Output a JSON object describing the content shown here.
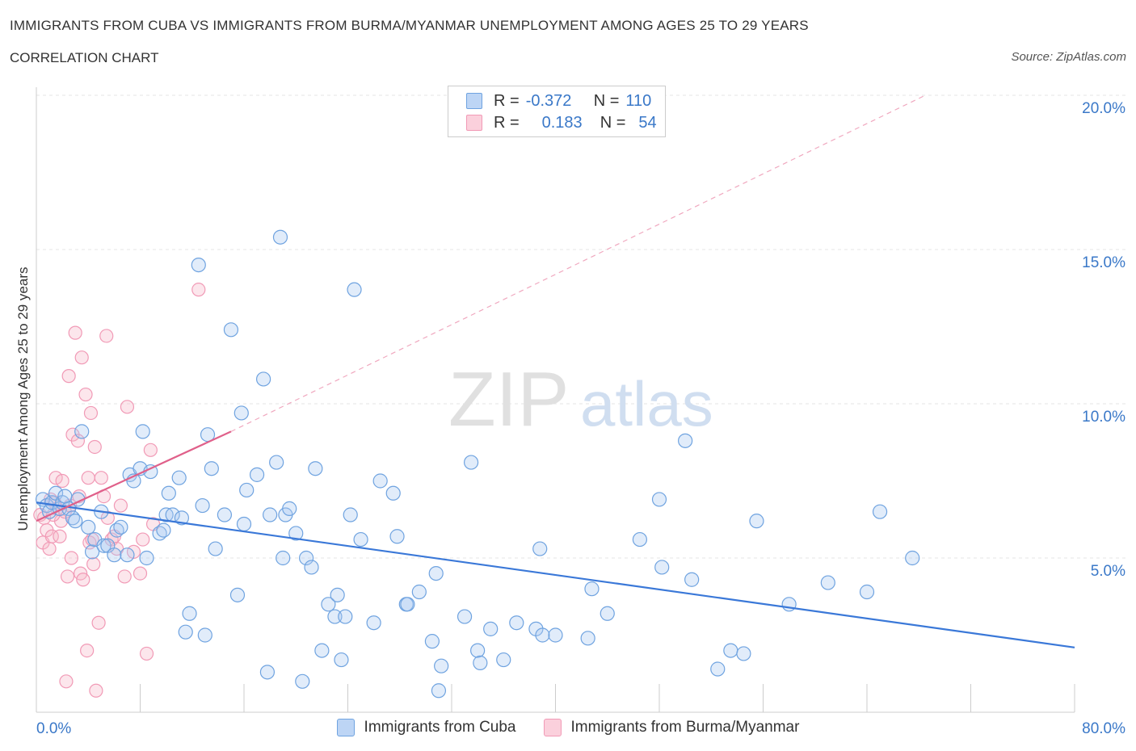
{
  "title": "IMMIGRANTS FROM CUBA VS IMMIGRANTS FROM BURMA/MYANMAR UNEMPLOYMENT AMONG AGES 25 TO 29 YEARS",
  "subtitle": "CORRELATION CHART",
  "source": "Source: ZipAtlas.com",
  "watermark": {
    "zip": "ZIP",
    "atlas": "atlas"
  },
  "legend": {
    "rows": [
      {
        "r_label": "R =",
        "r_value": "-0.372",
        "n_label": "N =",
        "n_value": "110",
        "color": "#a8c8f0"
      },
      {
        "r_label": "R =",
        "r_value": "0.183",
        "n_label": "N =",
        "n_value": "54",
        "color": "#f7b6c8"
      }
    ]
  },
  "bottom_legend": [
    "Immigrants from Cuba",
    "Immigrants from Burma/Myanmar"
  ],
  "chart_data": {
    "type": "scatter",
    "title": "IMMIGRANTS FROM CUBA VS IMMIGRANTS FROM BURMA/MYANMAR UNEMPLOYMENT AMONG AGES 25 TO 29 YEARS",
    "xlabel": "",
    "ylabel": "Unemployment Among Ages 25 to 29 years",
    "xlim": [
      0,
      80
    ],
    "ylim": [
      0,
      20
    ],
    "x_tick_labels": [
      "0.0%",
      "80.0%"
    ],
    "y_ticks": [
      5,
      10,
      15,
      20
    ],
    "y_tick_labels": [
      "5.0%",
      "10.0%",
      "15.0%",
      "20.0%"
    ],
    "grid": true,
    "series": [
      {
        "name": "Immigrants from Cuba",
        "color": "#6fa3e0",
        "trend": {
          "x": [
            0,
            80
          ],
          "y": [
            6.8,
            2.1
          ],
          "color": "#3a78d8"
        },
        "points": [
          [
            0.5,
            6.9
          ],
          [
            0.8,
            6.7
          ],
          [
            1.0,
            6.5
          ],
          [
            1.2,
            6.8
          ],
          [
            1.5,
            7.1
          ],
          [
            1.8,
            6.6
          ],
          [
            2.0,
            6.8
          ],
          [
            2.2,
            7.0
          ],
          [
            2.5,
            6.6
          ],
          [
            2.8,
            6.3
          ],
          [
            3.0,
            6.2
          ],
          [
            3.2,
            6.9
          ],
          [
            3.5,
            9.1
          ],
          [
            4.0,
            6.0
          ],
          [
            4.3,
            5.2
          ],
          [
            4.5,
            5.6
          ],
          [
            5.0,
            6.5
          ],
          [
            5.2,
            5.4
          ],
          [
            5.5,
            5.4
          ],
          [
            6.0,
            5.1
          ],
          [
            6.2,
            5.9
          ],
          [
            6.5,
            6.0
          ],
          [
            7.0,
            5.1
          ],
          [
            7.2,
            7.7
          ],
          [
            7.5,
            7.5
          ],
          [
            8.0,
            7.9
          ],
          [
            8.2,
            9.1
          ],
          [
            8.5,
            5.0
          ],
          [
            8.8,
            7.8
          ],
          [
            9.5,
            5.8
          ],
          [
            9.8,
            5.9
          ],
          [
            10.0,
            6.4
          ],
          [
            10.2,
            7.1
          ],
          [
            10.5,
            6.4
          ],
          [
            11.0,
            7.6
          ],
          [
            11.2,
            6.3
          ],
          [
            11.5,
            2.6
          ],
          [
            11.8,
            3.2
          ],
          [
            12.5,
            14.5
          ],
          [
            12.8,
            6.7
          ],
          [
            13.0,
            2.5
          ],
          [
            13.2,
            9.0
          ],
          [
            13.5,
            7.9
          ],
          [
            13.8,
            5.3
          ],
          [
            14.5,
            6.4
          ],
          [
            15.0,
            12.4
          ],
          [
            15.5,
            3.8
          ],
          [
            15.8,
            9.7
          ],
          [
            16.0,
            6.1
          ],
          [
            16.2,
            7.2
          ],
          [
            17.0,
            7.7
          ],
          [
            17.5,
            10.8
          ],
          [
            17.8,
            1.3
          ],
          [
            18.0,
            6.4
          ],
          [
            18.5,
            8.1
          ],
          [
            18.8,
            15.4
          ],
          [
            19.0,
            5.0
          ],
          [
            19.2,
            6.4
          ],
          [
            19.5,
            6.6
          ],
          [
            20.0,
            5.8
          ],
          [
            20.5,
            1.0
          ],
          [
            20.8,
            5.0
          ],
          [
            21.2,
            4.7
          ],
          [
            21.5,
            7.9
          ],
          [
            22.0,
            2.0
          ],
          [
            22.5,
            3.5
          ],
          [
            23.0,
            3.1
          ],
          [
            23.2,
            3.8
          ],
          [
            23.5,
            1.7
          ],
          [
            23.8,
            3.1
          ],
          [
            24.2,
            6.4
          ],
          [
            24.5,
            13.7
          ],
          [
            25.0,
            5.6
          ],
          [
            26.0,
            2.9
          ],
          [
            26.5,
            7.5
          ],
          [
            27.5,
            7.1
          ],
          [
            27.8,
            5.7
          ],
          [
            28.5,
            3.5
          ],
          [
            28.6,
            3.5
          ],
          [
            29.5,
            3.9
          ],
          [
            30.5,
            2.3
          ],
          [
            30.8,
            4.5
          ],
          [
            31.2,
            1.5
          ],
          [
            31.0,
            0.7
          ],
          [
            33.0,
            3.1
          ],
          [
            33.5,
            8.1
          ],
          [
            34.0,
            2.0
          ],
          [
            34.2,
            1.6
          ],
          [
            35.0,
            2.7
          ],
          [
            36.0,
            1.7
          ],
          [
            37.0,
            2.9
          ],
          [
            38.5,
            2.7
          ],
          [
            38.8,
            5.3
          ],
          [
            39.0,
            2.5
          ],
          [
            40.0,
            2.5
          ],
          [
            42.5,
            2.4
          ],
          [
            42.8,
            4.0
          ],
          [
            44.0,
            3.2
          ],
          [
            46.5,
            5.6
          ],
          [
            48.0,
            6.9
          ],
          [
            48.2,
            4.7
          ],
          [
            50.0,
            8.8
          ],
          [
            50.5,
            4.3
          ],
          [
            52.5,
            1.4
          ],
          [
            53.5,
            2.0
          ],
          [
            54.5,
            1.9
          ],
          [
            55.5,
            6.2
          ],
          [
            58.0,
            3.5
          ],
          [
            61.0,
            4.2
          ],
          [
            64.0,
            3.9
          ],
          [
            65.0,
            6.5
          ],
          [
            67.5,
            5.0
          ]
        ]
      },
      {
        "name": "Immigrants from Burma/Myanmar",
        "color": "#f19ab6",
        "trend": {
          "x": [
            0,
            15
          ],
          "y": [
            6.2,
            9.1
          ],
          "color": "#e0608a"
        },
        "trend_extension": {
          "x": [
            15,
            68.5
          ],
          "y": [
            9.1,
            20
          ]
        },
        "points": [
          [
            0.3,
            6.4
          ],
          [
            0.5,
            5.5
          ],
          [
            0.6,
            6.3
          ],
          [
            0.8,
            5.9
          ],
          [
            1.0,
            5.3
          ],
          [
            1.1,
            6.9
          ],
          [
            1.2,
            5.7
          ],
          [
            1.4,
            6.8
          ],
          [
            1.5,
            7.6
          ],
          [
            1.6,
            6.6
          ],
          [
            1.8,
            5.7
          ],
          [
            1.9,
            6.2
          ],
          [
            2.0,
            7.5
          ],
          [
            2.2,
            6.5
          ],
          [
            2.4,
            4.4
          ],
          [
            2.5,
            10.9
          ],
          [
            2.6,
            6.7
          ],
          [
            2.7,
            5.0
          ],
          [
            2.8,
            9.0
          ],
          [
            3.0,
            12.3
          ],
          [
            3.2,
            8.8
          ],
          [
            3.3,
            7.0
          ],
          [
            3.4,
            4.5
          ],
          [
            3.5,
            11.5
          ],
          [
            3.6,
            4.3
          ],
          [
            3.8,
            10.3
          ],
          [
            3.9,
            2.0
          ],
          [
            4.0,
            7.6
          ],
          [
            4.1,
            5.5
          ],
          [
            4.2,
            9.7
          ],
          [
            4.3,
            5.6
          ],
          [
            4.4,
            4.8
          ],
          [
            4.5,
            8.6
          ],
          [
            4.6,
            0.7
          ],
          [
            4.8,
            2.9
          ],
          [
            5.0,
            7.6
          ],
          [
            5.2,
            7.0
          ],
          [
            5.4,
            12.2
          ],
          [
            5.5,
            6.3
          ],
          [
            5.8,
            5.6
          ],
          [
            6.0,
            5.7
          ],
          [
            6.2,
            5.3
          ],
          [
            6.5,
            6.7
          ],
          [
            6.8,
            4.4
          ],
          [
            7.0,
            9.9
          ],
          [
            7.5,
            5.2
          ],
          [
            8.0,
            4.5
          ],
          [
            8.2,
            5.6
          ],
          [
            8.5,
            1.9
          ],
          [
            8.8,
            8.5
          ],
          [
            9.0,
            6.1
          ],
          [
            12.5,
            13.7
          ],
          [
            2.3,
            1.0
          ],
          [
            1.3,
            6.4
          ]
        ]
      }
    ]
  }
}
